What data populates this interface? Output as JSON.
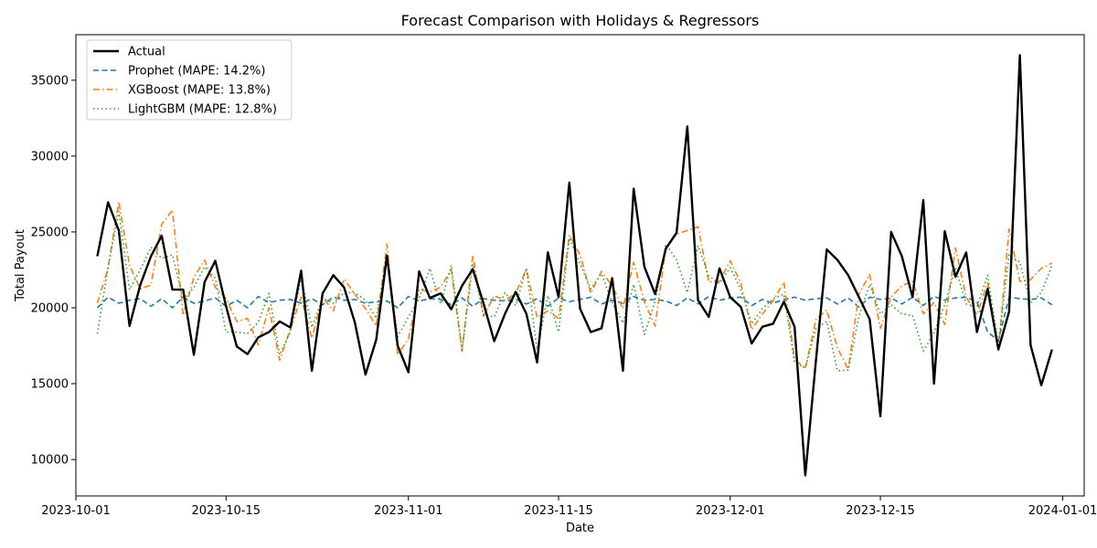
{
  "chart_data": {
    "type": "line",
    "title": "Forecast Comparison with Holidays & Regressors",
    "xlabel": "Date",
    "ylabel": "Total Payout",
    "x_start": "2023-10-03",
    "x_end": "2023-12-31",
    "xlim": [
      "2023-10-01",
      "2024-01-03"
    ],
    "ylim": [
      7600,
      38000
    ],
    "x_ticks": [
      "2023-10-01",
      "2023-10-15",
      "2023-11-01",
      "2023-11-15",
      "2023-12-01",
      "2023-12-15",
      "2024-01-01"
    ],
    "y_ticks": [
      10000,
      15000,
      20000,
      25000,
      30000,
      35000
    ],
    "grid": false,
    "legend_position": "top-left",
    "series": [
      {
        "name": "Actual",
        "color": "#000000",
        "style": "solid",
        "values": [
          23400,
          26950,
          25100,
          18800,
          21500,
          23400,
          24750,
          21200,
          21200,
          16900,
          21700,
          23100,
          20100,
          17450,
          16950,
          18050,
          18400,
          19100,
          18700,
          22450,
          15850,
          20950,
          22150,
          21350,
          19050,
          15600,
          17900,
          23450,
          17500,
          15750,
          22400,
          20650,
          20950,
          19900,
          21450,
          22550,
          20300,
          17800,
          19600,
          21050,
          19600,
          16400,
          23650,
          20700,
          28250,
          19950,
          18400,
          18650,
          21950,
          15850,
          27850,
          22700,
          20900,
          23900,
          24950,
          31950,
          20500,
          19400,
          22600,
          20700,
          20050,
          17650,
          18750,
          18950,
          20400,
          18750,
          8950,
          16600,
          23850,
          23150,
          22150,
          20700,
          19250,
          12850,
          25000,
          23400,
          20700,
          27100,
          15000,
          25050,
          22050,
          23650,
          18400,
          21250,
          17250,
          19750,
          36650,
          17550,
          14900,
          17250
        ]
      },
      {
        "name": "Prophet (MAPE: 14.2%)",
        "color": "#1f77b4",
        "style": "dashed",
        "values": [
          20000,
          20700,
          20300,
          20500,
          20600,
          20100,
          20600,
          20000,
          20700,
          20300,
          20450,
          20650,
          20100,
          20500,
          20000,
          20750,
          20350,
          20500,
          20550,
          20300,
          20600,
          20200,
          20700,
          20500,
          20550,
          20300,
          20400,
          20450,
          20000,
          20750,
          20450,
          20600,
          20550,
          20200,
          20650,
          20100,
          20600,
          20500,
          20450,
          20550,
          20250,
          20600,
          20100,
          20650,
          20400,
          20550,
          20700,
          20250,
          20500,
          20300,
          20750,
          20500,
          20550,
          20450,
          20150,
          20650,
          20250,
          20750,
          20500,
          20650,
          20700,
          20150,
          20550,
          20300,
          20550,
          20700,
          20500,
          20600,
          20650,
          20250,
          20650,
          20050,
          20700,
          20550,
          20650,
          20250,
          20700,
          20150,
          20750,
          20500,
          20650,
          20700,
          20400,
          18400,
          17850,
          20700,
          20600,
          20550,
          20650,
          20200
        ]
      },
      {
        "name": "XGBoost (MAPE: 13.8%)",
        "color": "#ff7f0e",
        "style": "dashdot",
        "values": [
          20300,
          22600,
          27000,
          22800,
          21250,
          21500,
          25500,
          26450,
          19500,
          22000,
          23150,
          21350,
          20600,
          19100,
          19300,
          17550,
          20000,
          16550,
          18600,
          20700,
          18000,
          20700,
          19800,
          21900,
          20900,
          19950,
          18800,
          24200,
          16900,
          17950,
          21200,
          21050,
          21350,
          22500,
          17150,
          23450,
          19450,
          20800,
          20500,
          20950,
          22550,
          19350,
          19800,
          19300,
          24800,
          23500,
          20950,
          22400,
          21450,
          19950,
          23000,
          20400,
          18800,
          24000,
          24850,
          25100,
          25350,
          21700,
          21750,
          23100,
          21600,
          18550,
          19600,
          20450,
          21700,
          16600,
          16000,
          19250,
          19850,
          17350,
          15950,
          20900,
          22200,
          18650,
          20700,
          21450,
          21750,
          19600,
          20350,
          18900,
          23950,
          20700,
          19550,
          21650,
          17250,
          25200,
          21750,
          21850,
          22600,
          22950
        ]
      },
      {
        "name": "LightGBM (MAPE: 12.8%)",
        "color": "#2ca02c",
        "style": "dotted",
        "values": [
          18300,
          22650,
          26350,
          21200,
          22500,
          24000,
          23250,
          23500,
          20500,
          21350,
          22700,
          21950,
          18400,
          18400,
          18300,
          19050,
          20950,
          16900,
          18450,
          22000,
          18700,
          20650,
          20300,
          21000,
          21000,
          20500,
          19300,
          23300,
          18100,
          19400,
          20600,
          22600,
          20250,
          22800,
          17200,
          22900,
          19500,
          19400,
          21000,
          20150,
          22600,
          17200,
          20800,
          18400,
          24600,
          22900,
          21250,
          22250,
          20350,
          19000,
          21550,
          18250,
          20450,
          24200,
          23150,
          21000,
          24100,
          22100,
          21600,
          22650,
          21200,
          18950,
          19950,
          20600,
          20900,
          16400,
          16050,
          18650,
          19100,
          15850,
          15900,
          19450,
          21550,
          19600,
          20200,
          19600,
          19500,
          17150,
          18350,
          20200,
          22650,
          20250,
          20050,
          22150,
          17550,
          23500,
          23000,
          20300,
          21000,
          22800
        ]
      }
    ]
  }
}
